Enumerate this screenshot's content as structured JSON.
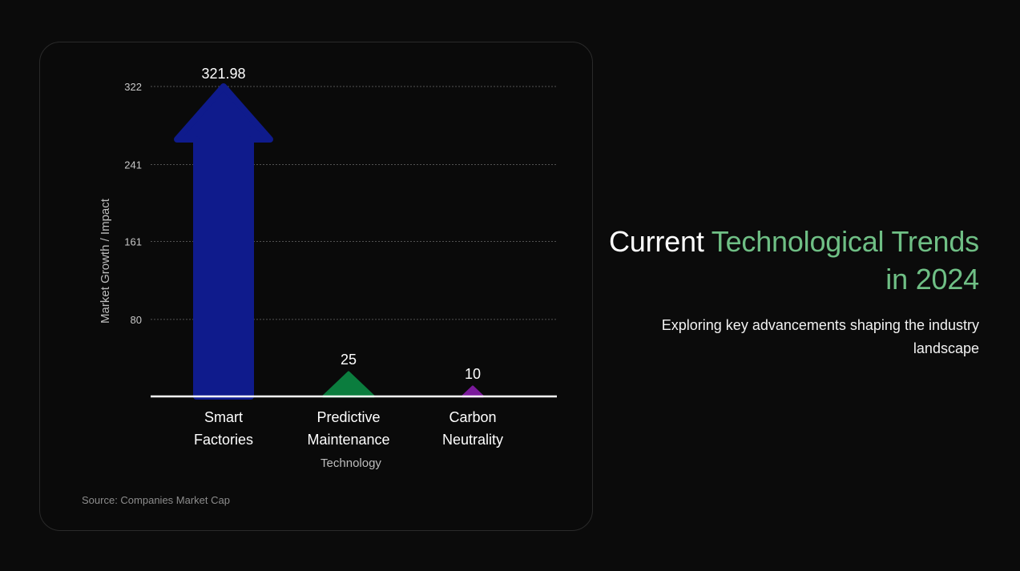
{
  "chart_data": {
    "type": "bar",
    "categories": [
      [
        "Smart",
        "Factories"
      ],
      [
        "Predictive",
        "Maintenance"
      ],
      [
        "Carbon",
        "Neutrality"
      ]
    ],
    "values": [
      321.98,
      25,
      10
    ],
    "value_labels": [
      "321.98",
      "25",
      "10"
    ],
    "colors": [
      "#0f1b8c",
      "#0b7d3e",
      "#7b1a9c"
    ],
    "xlabel": "Technology",
    "ylabel": "Market Growth / Impact",
    "yticks": [
      80,
      161,
      241,
      322
    ],
    "ylim": [
      0,
      322
    ],
    "grid": true
  },
  "source": "Source: Companies Market Cap",
  "heading": {
    "part1": "Current ",
    "part2": "Technological Trends in 2024",
    "subtitle": "Exploring key advancements shaping the industry landscape"
  },
  "colors": {
    "background": "#0b0b0b",
    "accent": "#6fbf85"
  }
}
